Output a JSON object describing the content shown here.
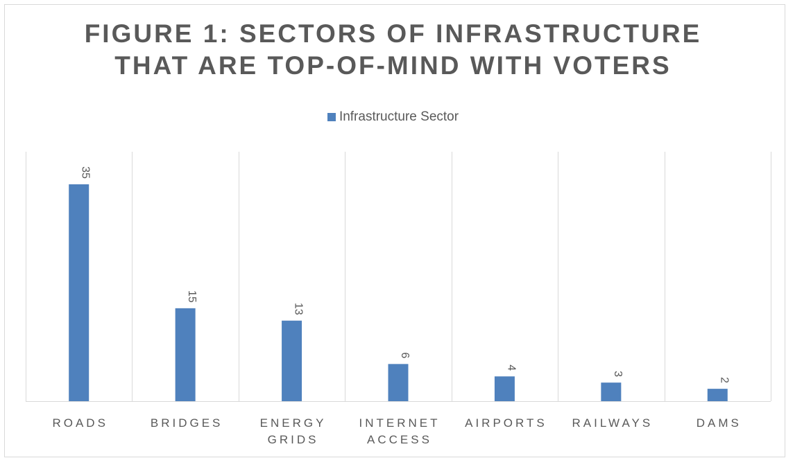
{
  "chart_data": {
    "type": "bar",
    "title_lines": [
      "FIGURE 1: SECTORS OF INFRASTRUCTURE",
      "THAT ARE TOP-OF-MIND WITH VOTERS"
    ],
    "categories": [
      [
        "ROADS"
      ],
      [
        "BRIDGES"
      ],
      [
        "ENERGY",
        "GRIDS"
      ],
      [
        "INTERNET",
        "ACCESS"
      ],
      [
        "AIRPORTS"
      ],
      [
        "RAILWAYS"
      ],
      [
        "DAMS"
      ]
    ],
    "series": [
      {
        "name": "Infrastructure Sector",
        "values": [
          35,
          15,
          13,
          6,
          4,
          3,
          2
        ],
        "color": "#4f81bd"
      }
    ],
    "data_labels": [
      "35",
      "15",
      "13",
      "6",
      "4",
      "3",
      "2"
    ],
    "ylim": [
      0,
      40
    ],
    "grid": "vertical-category-separators",
    "legend_position": "top"
  }
}
